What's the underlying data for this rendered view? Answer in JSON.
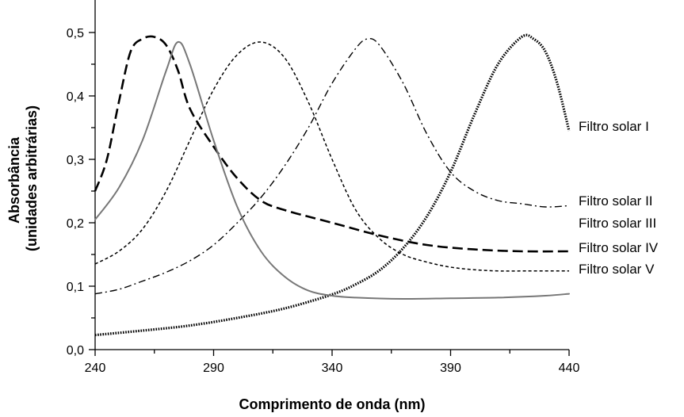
{
  "chart_data": {
    "type": "line",
    "title": "",
    "xlabel": "Comprimento de onda (nm)",
    "ylabel_lines": [
      "Absorbância",
      "(unidades arbitrárias)"
    ],
    "xlim": [
      240,
      440
    ],
    "ylim": [
      0,
      0.5
    ],
    "x_ticks": [
      240,
      290,
      340,
      390,
      440
    ],
    "x_tick_labels": [
      "240",
      "290",
      "340",
      "390",
      "440"
    ],
    "y_ticks": [
      0.0,
      0.1,
      0.2,
      0.3,
      0.4,
      0.5
    ],
    "y_tick_labels": [
      "0,0",
      "0,1",
      "0,2",
      "0,3",
      "0,4",
      "0,5"
    ],
    "grid": false,
    "legend": "none",
    "series": [
      {
        "name": "Filtro solar I",
        "style": "dotted",
        "color": "#000000",
        "points": [
          [
            240,
            0.023
          ],
          [
            260,
            0.03
          ],
          [
            280,
            0.038
          ],
          [
            300,
            0.05
          ],
          [
            320,
            0.065
          ],
          [
            340,
            0.087
          ],
          [
            350,
            0.103
          ],
          [
            360,
            0.125
          ],
          [
            370,
            0.16
          ],
          [
            380,
            0.21
          ],
          [
            390,
            0.28
          ],
          [
            400,
            0.37
          ],
          [
            410,
            0.45
          ],
          [
            420,
            0.493
          ],
          [
            425,
            0.49
          ],
          [
            430,
            0.47
          ],
          [
            435,
            0.42
          ],
          [
            440,
            0.345
          ]
        ]
      },
      {
        "name": "Filtro solar II",
        "style": "dash-dot",
        "color": "#000000",
        "points": [
          [
            240,
            0.088
          ],
          [
            250,
            0.095
          ],
          [
            260,
            0.108
          ],
          [
            270,
            0.122
          ],
          [
            280,
            0.14
          ],
          [
            290,
            0.165
          ],
          [
            300,
            0.2
          ],
          [
            310,
            0.24
          ],
          [
            320,
            0.29
          ],
          [
            330,
            0.35
          ],
          [
            340,
            0.42
          ],
          [
            350,
            0.475
          ],
          [
            355,
            0.49
          ],
          [
            360,
            0.48
          ],
          [
            370,
            0.42
          ],
          [
            380,
            0.34
          ],
          [
            390,
            0.28
          ],
          [
            400,
            0.25
          ],
          [
            410,
            0.235
          ],
          [
            420,
            0.23
          ],
          [
            430,
            0.225
          ],
          [
            440,
            0.227
          ]
        ]
      },
      {
        "name": "Filtro solar III",
        "style": "long-dash",
        "color": "#000000",
        "points": [
          [
            240,
            0.25
          ],
          [
            245,
            0.3
          ],
          [
            250,
            0.39
          ],
          [
            255,
            0.47
          ],
          [
            260,
            0.49
          ],
          [
            265,
            0.493
          ],
          [
            270,
            0.48
          ],
          [
            275,
            0.44
          ],
          [
            280,
            0.38
          ],
          [
            290,
            0.32
          ],
          [
            300,
            0.27
          ],
          [
            310,
            0.235
          ],
          [
            320,
            0.22
          ],
          [
            340,
            0.2
          ],
          [
            360,
            0.18
          ],
          [
            380,
            0.165
          ],
          [
            400,
            0.158
          ],
          [
            420,
            0.155
          ],
          [
            440,
            0.155
          ]
        ]
      },
      {
        "name": "Filtro solar IV",
        "style": "short-dash",
        "color": "#000000",
        "points": [
          [
            240,
            0.135
          ],
          [
            250,
            0.155
          ],
          [
            260,
            0.19
          ],
          [
            270,
            0.25
          ],
          [
            280,
            0.33
          ],
          [
            290,
            0.41
          ],
          [
            300,
            0.465
          ],
          [
            310,
            0.485
          ],
          [
            320,
            0.46
          ],
          [
            330,
            0.39
          ],
          [
            340,
            0.3
          ],
          [
            350,
            0.22
          ],
          [
            360,
            0.175
          ],
          [
            370,
            0.15
          ],
          [
            380,
            0.138
          ],
          [
            390,
            0.13
          ],
          [
            400,
            0.126
          ],
          [
            410,
            0.124
          ],
          [
            420,
            0.124
          ],
          [
            440,
            0.124
          ]
        ]
      },
      {
        "name": "Filtro solar V",
        "style": "solid-gray",
        "color": "#777777",
        "points": [
          [
            240,
            0.205
          ],
          [
            250,
            0.255
          ],
          [
            260,
            0.33
          ],
          [
            270,
            0.44
          ],
          [
            275,
            0.485
          ],
          [
            280,
            0.45
          ],
          [
            290,
            0.33
          ],
          [
            300,
            0.225
          ],
          [
            310,
            0.155
          ],
          [
            320,
            0.115
          ],
          [
            330,
            0.093
          ],
          [
            340,
            0.085
          ],
          [
            350,
            0.082
          ],
          [
            370,
            0.08
          ],
          [
            390,
            0.081
          ],
          [
            410,
            0.082
          ],
          [
            430,
            0.085
          ],
          [
            440,
            0.088
          ]
        ]
      }
    ]
  }
}
